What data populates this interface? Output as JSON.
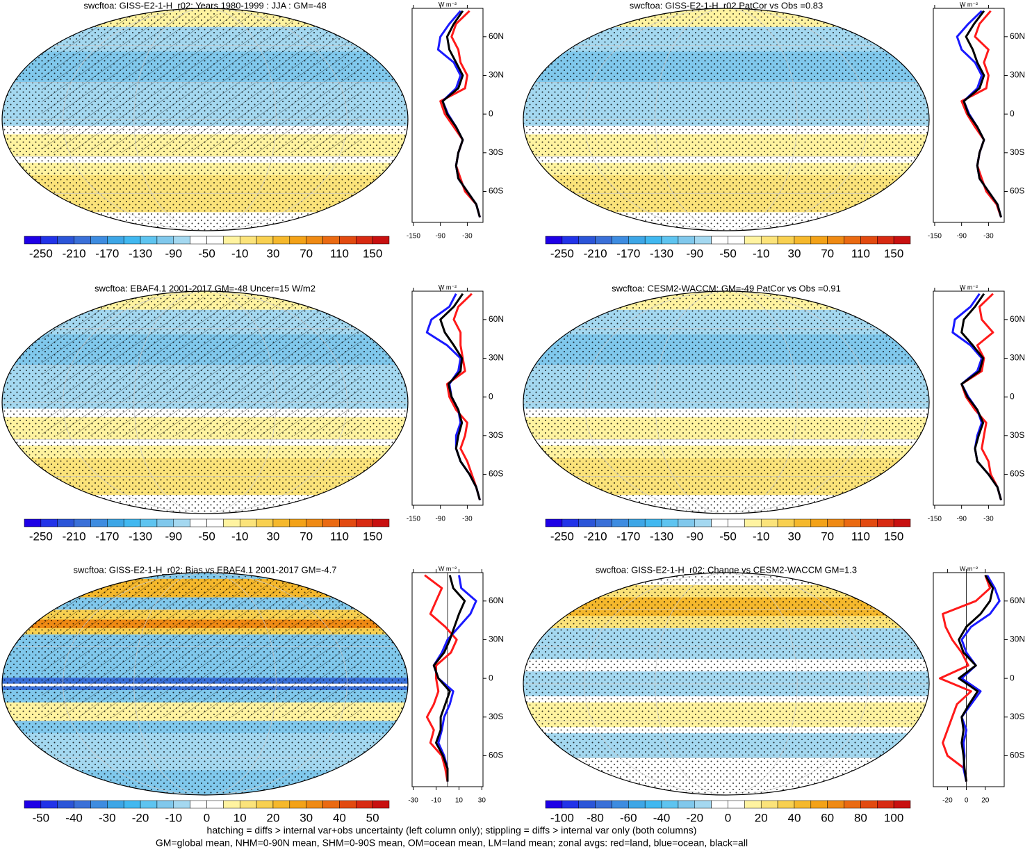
{
  "chart_data": [
    {
      "type": "line",
      "title": "swcftoa: GISS-E2-1-H_r02: Years 1980-1999 : JJA : GM=-48",
      "units": "W m⁻²",
      "map_style": "mean",
      "cbar_clim": [
        -270,
        170
      ],
      "cbar_ticks": [
        -250,
        -210,
        -170,
        -130,
        -90,
        -50,
        -10,
        30,
        70,
        110,
        150
      ],
      "y": [
        -80,
        -70,
        -60,
        -50,
        -40,
        -30,
        -20,
        -10,
        0,
        10,
        20,
        30,
        40,
        50,
        60,
        70,
        80
      ],
      "ylim": [
        -84,
        82
      ],
      "yticks": [
        {
          "value": 60,
          "label": "60N"
        },
        {
          "value": 30,
          "label": "30N"
        },
        0,
        {
          "value": -30,
          "label": "30S"
        },
        {
          "value": -60,
          "label": "60S"
        }
      ],
      "xlim": [
        -153,
        5
      ],
      "xticks": [
        -150,
        -90,
        -30
      ],
      "zero_line": false,
      "series": [
        {
          "name": "land",
          "color": "#ff1a1a",
          "values": [
            -2,
            -10,
            -35,
            -45,
            -55,
            -50,
            -40,
            -60,
            -80,
            -90,
            -35,
            -30,
            -45,
            -50,
            -65,
            -55,
            -25
          ]
        },
        {
          "name": "ocean",
          "color": "#1a1aff",
          "values": [
            -2,
            -10,
            -30,
            -50,
            -55,
            -50,
            -40,
            -55,
            -73,
            -85,
            -55,
            -45,
            -60,
            -95,
            -90,
            -70,
            -45
          ]
        },
        {
          "name": "all",
          "color": "#000000",
          "values": [
            -2,
            -10,
            -30,
            -50,
            -55,
            -50,
            -40,
            -55,
            -75,
            -85,
            -50,
            -40,
            -55,
            -70,
            -75,
            -60,
            -40
          ]
        }
      ]
    },
    {
      "type": "line",
      "title": "swcftoa: GISS-E2-1-H_r02 PatCor vs Obs =0.83",
      "units": "W m⁻²",
      "map_style": "mean",
      "cbar_clim": [
        -270,
        170
      ],
      "cbar_ticks": [
        -250,
        -210,
        -170,
        -130,
        -90,
        -50,
        -10,
        30,
        70,
        110,
        150
      ],
      "y": [
        -80,
        -70,
        -60,
        -50,
        -40,
        -30,
        -20,
        -10,
        0,
        10,
        20,
        30,
        40,
        50,
        60,
        70,
        80
      ],
      "ylim": [
        -84,
        82
      ],
      "yticks": [
        {
          "value": 60,
          "label": "60N"
        },
        {
          "value": 30,
          "label": "30N"
        },
        0,
        {
          "value": -30,
          "label": "30S"
        },
        {
          "value": -60,
          "label": "60S"
        }
      ],
      "xlim": [
        -153,
        5
      ],
      "xticks": [
        -150,
        -90,
        -30
      ],
      "zero_line": false,
      "series": [
        {
          "name": "land",
          "color": "#ff1a1a",
          "values": [
            -2,
            -12,
            -35,
            -45,
            -55,
            -50,
            -40,
            -60,
            -78,
            -90,
            -35,
            -30,
            -40,
            -30,
            -60,
            -50,
            -25
          ]
        },
        {
          "name": "ocean",
          "color": "#1a1aff",
          "values": [
            -2,
            -10,
            -30,
            -50,
            -55,
            -50,
            -40,
            -55,
            -73,
            -85,
            -55,
            -45,
            -60,
            -90,
            -100,
            -75,
            -45
          ]
        },
        {
          "name": "all",
          "color": "#000000",
          "values": [
            -2,
            -10,
            -30,
            -50,
            -55,
            -50,
            -40,
            -55,
            -75,
            -85,
            -50,
            -40,
            -55,
            -65,
            -80,
            -62,
            -40
          ]
        }
      ]
    },
    {
      "type": "line",
      "title": "swcftoa: EBAF4.1 2001-2017 GM=-48 Uncer=15 W/m2",
      "units": "W m⁻²",
      "map_style": "mean",
      "cbar_clim": [
        -270,
        170
      ],
      "cbar_ticks": [
        -250,
        -210,
        -170,
        -130,
        -90,
        -50,
        -10,
        30,
        70,
        110,
        150
      ],
      "y": [
        -80,
        -70,
        -60,
        -50,
        -40,
        -30,
        -20,
        -10,
        0,
        10,
        20,
        30,
        40,
        50,
        60,
        70,
        80
      ],
      "ylim": [
        -84,
        82
      ],
      "yticks": [
        {
          "value": 60,
          "label": "60N"
        },
        {
          "value": 30,
          "label": "30N"
        },
        0,
        {
          "value": -30,
          "label": "30S"
        },
        {
          "value": -60,
          "label": "60S"
        }
      ],
      "xlim": [
        -153,
        5
      ],
      "xticks": [
        -150,
        -90,
        -30
      ],
      "zero_line": false,
      "series": [
        {
          "name": "land",
          "color": "#ff1a1a",
          "values": [
            -2,
            -10,
            -20,
            -30,
            -45,
            -35,
            -30,
            -55,
            -70,
            -75,
            -35,
            -40,
            -45,
            -45,
            -60,
            -50,
            -20
          ]
        },
        {
          "name": "ocean",
          "color": "#1a1aff",
          "values": [
            -2,
            -10,
            -25,
            -45,
            -55,
            -55,
            -45,
            -50,
            -65,
            -70,
            -50,
            -45,
            -75,
            -120,
            -110,
            -70,
            -55
          ]
        },
        {
          "name": "all",
          "color": "#000000",
          "values": [
            -2,
            -10,
            -25,
            -45,
            -55,
            -50,
            -42,
            -50,
            -65,
            -72,
            -45,
            -42,
            -60,
            -80,
            -90,
            -60,
            -40
          ]
        }
      ]
    },
    {
      "type": "line",
      "title": "swcftoa: CESM2-WACCM: GM=-49 PatCor vs Obs =0.91",
      "units": "W m⁻²",
      "map_style": "mean",
      "cbar_clim": [
        -270,
        170
      ],
      "cbar_ticks": [
        -250,
        -210,
        -170,
        -130,
        -90,
        -50,
        -10,
        30,
        70,
        110,
        150
      ],
      "y": [
        -80,
        -70,
        -60,
        -50,
        -40,
        -30,
        -20,
        -10,
        0,
        10,
        20,
        30,
        40,
        50,
        60,
        70,
        80
      ],
      "ylim": [
        -84,
        82
      ],
      "yticks": [
        {
          "value": 60,
          "label": "60N"
        },
        {
          "value": 30,
          "label": "30N"
        },
        0,
        {
          "value": -30,
          "label": "30S"
        },
        {
          "value": -60,
          "label": "60S"
        }
      ],
      "xlim": [
        -153,
        5
      ],
      "xticks": [
        -150,
        -90,
        -30
      ],
      "zero_line": false,
      "series": [
        {
          "name": "land",
          "color": "#ff1a1a",
          "values": [
            -2,
            -10,
            -25,
            -30,
            -45,
            -40,
            -35,
            -60,
            -80,
            -90,
            -45,
            -40,
            -55,
            -20,
            -45,
            -50,
            -20
          ]
        },
        {
          "name": "ocean",
          "color": "#1a1aff",
          "values": [
            -2,
            -10,
            -30,
            -55,
            -60,
            -55,
            -45,
            -55,
            -75,
            -90,
            -55,
            -45,
            -70,
            -110,
            -105,
            -70,
            -50
          ]
        },
        {
          "name": "all",
          "color": "#000000",
          "values": [
            -2,
            -10,
            -30,
            -55,
            -60,
            -52,
            -42,
            -55,
            -77,
            -90,
            -50,
            -42,
            -65,
            -90,
            -85,
            -60,
            -40
          ]
        }
      ]
    },
    {
      "type": "line",
      "title": "swcftoa: GISS-E2-1-H_r02: Bias vs EBAF4.1 2001-2017 GM=-4.7",
      "units": "W m⁻²",
      "map_style": "bias",
      "cbar_clim": [
        -55,
        55
      ],
      "cbar_ticks": [
        -50,
        -40,
        -30,
        -20,
        -10,
        0,
        10,
        20,
        30,
        40,
        50
      ],
      "y": [
        -80,
        -70,
        -60,
        -50,
        -40,
        -30,
        -20,
        -10,
        0,
        10,
        20,
        30,
        40,
        50,
        60,
        70,
        80
      ],
      "ylim": [
        -84,
        82
      ],
      "yticks": [
        {
          "value": 60,
          "label": "60N"
        },
        {
          "value": 30,
          "label": "30N"
        },
        0,
        {
          "value": -30,
          "label": "30S"
        },
        {
          "value": -60,
          "label": "60S"
        }
      ],
      "xlim": [
        -31,
        31
      ],
      "xticks": [
        -30,
        -10,
        10,
        30
      ],
      "zero_line": true,
      "series": [
        {
          "name": "land",
          "color": "#ff1a1a",
          "values": [
            0,
            -2,
            -5,
            -15,
            -12,
            -18,
            -12,
            -8,
            -10,
            -10,
            3,
            8,
            -2,
            -15,
            -10,
            -5,
            -20
          ]
        },
        {
          "name": "ocean",
          "color": "#1a1aff",
          "values": [
            0,
            0,
            -3,
            -8,
            -5,
            -3,
            2,
            5,
            -8,
            -12,
            -5,
            0,
            10,
            20,
            25,
            12,
            10
          ]
        },
        {
          "name": "all",
          "color": "#000000",
          "values": [
            0,
            0,
            -4,
            -10,
            -6,
            -6,
            -2,
            2,
            -8,
            -12,
            -3,
            2,
            6,
            10,
            15,
            5,
            2
          ]
        }
      ]
    },
    {
      "type": "line",
      "title": "swcftoa: GISS-E2-1-H_r02: Change vs CESM2-WACCM GM=1.3",
      "units": "W m⁻²",
      "map_style": "change",
      "cbar_clim": [
        -110,
        110
      ],
      "cbar_ticks": [
        -100,
        -80,
        -60,
        -40,
        -20,
        0,
        20,
        40,
        60,
        80,
        100
      ],
      "y": [
        -80,
        -70,
        -60,
        -50,
        -40,
        -30,
        -20,
        -10,
        0,
        10,
        20,
        30,
        40,
        50,
        60,
        70,
        80
      ],
      "ylim": [
        -84,
        82
      ],
      "yticks": [
        {
          "value": 60,
          "label": "60N"
        },
        {
          "value": 30,
          "label": "30N"
        },
        0,
        {
          "value": -30,
          "label": "30S"
        },
        {
          "value": -60,
          "label": "60S"
        }
      ],
      "xlim": [
        -35,
        40
      ],
      "xticks": [
        -20,
        0,
        20
      ],
      "zero_line": true,
      "series": [
        {
          "name": "land",
          "color": "#ff1a1a",
          "values": [
            0,
            -2,
            -20,
            -25,
            -20,
            -15,
            -10,
            5,
            -28,
            2,
            -5,
            -15,
            -22,
            -25,
            10,
            25,
            20
          ]
        },
        {
          "name": "ocean",
          "color": "#1a1aff",
          "values": [
            0,
            -3,
            -2,
            -3,
            0,
            -5,
            5,
            15,
            -5,
            10,
            0,
            -5,
            5,
            25,
            35,
            30,
            22
          ]
        },
        {
          "name": "all",
          "color": "#000000",
          "values": [
            0,
            -2,
            -3,
            -5,
            -3,
            -5,
            3,
            12,
            -8,
            10,
            -3,
            -8,
            0,
            15,
            25,
            28,
            20
          ]
        }
      ]
    }
  ],
  "footnote": [
    "hatching = diffs > internal var+obs uncertainty (left column only); stippling = diffs > internal var only (both columns)",
    "GM=global mean, NHM=0-90N mean, SHM=0-90S mean, OM=ocean mean, LM=land mean; zonal avgs: red=land, blue=ocean, black=all"
  ]
}
